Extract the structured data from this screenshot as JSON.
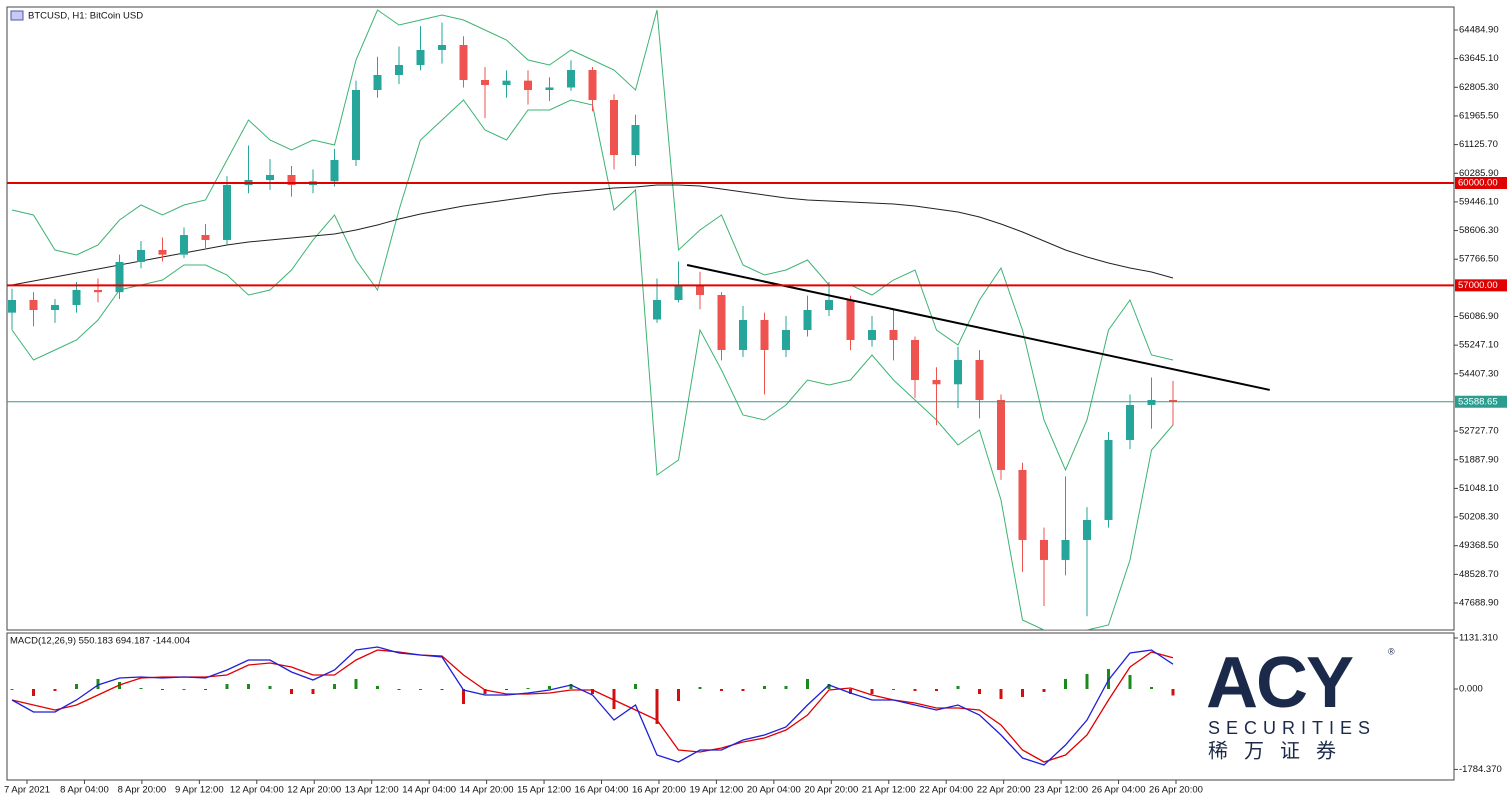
{
  "chart_data": [
    {
      "type": "candlestick",
      "title": "BTCUSD, H1:  BitCoin USD",
      "open": [
        56200,
        56571,
        56278,
        56425,
        56864,
        56800,
        57685,
        58037,
        57900,
        58476,
        58330,
        59942,
        60088,
        60235,
        59942,
        60050,
        60675,
        62726,
        63166,
        63459,
        63899,
        64045,
        63019,
        62873,
        63000,
        62726,
        62800,
        63313,
        62433,
        60821,
        56000,
        56571,
        57011,
        56718,
        55106,
        55985,
        55106,
        55692,
        56278,
        56571,
        55399,
        55692,
        55399,
        54226,
        54100,
        54813,
        53640,
        51589,
        49537,
        48951,
        49537,
        50123,
        52468,
        53494,
        53640
      ],
      "high": [
        56900,
        56800,
        56600,
        57100,
        57200,
        57900,
        58300,
        58400,
        58700,
        58800,
        60200,
        61100,
        60700,
        60500,
        60400,
        61000,
        63000,
        63700,
        64000,
        64600,
        64700,
        64300,
        63400,
        63300,
        63300,
        63100,
        63600,
        63400,
        62600,
        62000,
        57200,
        57700,
        57400,
        56800,
        56400,
        56200,
        56100,
        56700,
        57100,
        56700,
        56100,
        56300,
        55500,
        54600,
        55200,
        55100,
        53800,
        51800,
        49900,
        51400,
        50500,
        52700,
        53800,
        54300,
        54200
      ],
      "low": [
        55700,
        55800,
        55900,
        56200,
        56500,
        56600,
        57500,
        57700,
        57800,
        58100,
        58200,
        59700,
        59800,
        59600,
        59700,
        59900,
        60500,
        62500,
        62900,
        63300,
        63500,
        62800,
        61900,
        62500,
        62300,
        62400,
        62700,
        62100,
        60400,
        60500,
        55900,
        56500,
        56300,
        54800,
        54900,
        53800,
        54900,
        55500,
        56100,
        55100,
        55200,
        54800,
        53700,
        52900,
        53400,
        53100,
        51300,
        48600,
        47600,
        48500,
        47300,
        49900,
        52200,
        52800,
        52900
      ],
      "close": [
        56571,
        56278,
        56425,
        56864,
        56800,
        57685,
        58037,
        57900,
        58476,
        58330,
        59942,
        60088,
        60235,
        59942,
        60050,
        60675,
        62726,
        63166,
        63459,
        63899,
        64045,
        63019,
        62873,
        63000,
        62726,
        62800,
        63313,
        62433,
        60821,
        61700,
        56571,
        57011,
        56718,
        55106,
        55985,
        55106,
        55692,
        56278,
        56571,
        55399,
        55692,
        55399,
        54226,
        54100,
        54813,
        53640,
        51589,
        49537,
        48951,
        49537,
        50123,
        52468,
        53494,
        53640,
        53589
      ],
      "up_color": "#26a69a",
      "down_color": "#ef5350",
      "ylim": [
        46898,
        65159
      ],
      "yticks": [
        {
          "value": 64484.9,
          "label": "64484.90"
        },
        {
          "value": 63645.1,
          "label": "63645.10"
        },
        {
          "value": 62805.3,
          "label": "62805.30"
        },
        {
          "value": 61965.5,
          "label": "61965.50"
        },
        {
          "value": 61125.7,
          "label": "61125.70"
        },
        {
          "value": 60285.9,
          "label": "60285.90"
        },
        {
          "value": 59446.1,
          "label": "59446.10"
        },
        {
          "value": 58606.3,
          "label": "58606.30"
        },
        {
          "value": 57766.5,
          "label": "57766.50"
        },
        {
          "value": 56086.9,
          "label": "56086.90"
        },
        {
          "value": 55247.1,
          "label": "55247.10"
        },
        {
          "value": 54407.3,
          "label": "54407.30"
        },
        {
          "value": 52727.7,
          "label": "52727.70"
        },
        {
          "value": 51887.9,
          "label": "51887.90"
        },
        {
          "value": 51048.1,
          "label": "51048.10"
        },
        {
          "value": 50208.3,
          "label": "50208.30"
        },
        {
          "value": 49368.5,
          "label": "49368.50"
        },
        {
          "value": 48528.7,
          "label": "48528.70"
        },
        {
          "value": 47688.9,
          "label": "47688.90"
        }
      ],
      "x_labels": [
        "7 Apr 2021",
        "8 Apr 04:00",
        "8 Apr 20:00",
        "9 Apr 12:00",
        "12 Apr 04:00",
        "12 Apr 20:00",
        "13 Apr 12:00",
        "14 Apr 04:00",
        "14 Apr 20:00",
        "15 Apr 12:00",
        "16 Apr 04:00",
        "16 Apr 20:00",
        "19 Apr 12:00",
        "20 Apr 04:00",
        "20 Apr 20:00",
        "21 Apr 12:00",
        "22 Apr 04:00",
        "22 Apr 20:00",
        "23 Apr 12:00",
        "26 Apr 04:00",
        "26 Apr 20:00"
      ],
      "levels": [
        {
          "value": 60000,
          "label": "60000.00",
          "color": "#e00000"
        },
        {
          "value": 57000,
          "label": "57000.00",
          "color": "#e00000"
        },
        {
          "value": 53588.65,
          "label": "53588.65",
          "color": "#2a9d8f"
        }
      ],
      "moving_average": {
        "color": "#222222",
        "values": [
          57011,
          57128,
          57245,
          57363,
          57480,
          57597,
          57714,
          57832,
          57949,
          58066,
          58183,
          58271,
          58330,
          58388,
          58447,
          58506,
          58623,
          58770,
          58945,
          59092,
          59209,
          59327,
          59414,
          59502,
          59590,
          59678,
          59737,
          59795,
          59854,
          59883,
          59942,
          59942,
          59913,
          59825,
          59737,
          59649,
          59561,
          59502,
          59473,
          59444,
          59414,
          59385,
          59327,
          59239,
          59151,
          59004,
          58799,
          58565,
          58301,
          58037,
          57832,
          57656,
          57509,
          57392,
          57216
        ]
      },
      "bollinger": {
        "color": "#3cb371",
        "upper": [
          59209,
          59063,
          58037,
          57890,
          58183,
          58916,
          59356,
          59063,
          59356,
          59502,
          60675,
          61847,
          61261,
          60968,
          61261,
          61114,
          63606,
          65071,
          64632,
          64778,
          64925,
          64778,
          64485,
          64192,
          63606,
          63459,
          63899,
          63606,
          63313,
          62726,
          65071,
          58037,
          58623,
          59063,
          57597,
          57304,
          57451,
          57744,
          57011,
          57011,
          56718,
          57157,
          57451,
          55692,
          55252,
          56571,
          57509,
          55692,
          53054,
          51589,
          53054,
          55692,
          56571,
          54959,
          54813
        ],
        "lower": [
          55692,
          54813,
          55106,
          55399,
          55985,
          56864,
          57011,
          57157,
          57597,
          57597,
          57304,
          56718,
          56864,
          57451,
          58330,
          59063,
          57744,
          56864,
          59209,
          61261,
          61847,
          62433,
          61554,
          61261,
          62140,
          62140,
          62433,
          62287,
          59209,
          59795,
          51442,
          51882,
          55692,
          54520,
          53201,
          53054,
          53494,
          54226,
          54080,
          54226,
          54959,
          54226,
          53640,
          53054,
          52321,
          52761,
          50709,
          47192,
          46899,
          46899,
          46899,
          47046,
          48951,
          52175,
          52908
        ]
      },
      "trendline": {
        "color": "#000000",
        "x": [
          31.4,
          58.5
        ],
        "values": [
          57597,
          53934
        ]
      }
    },
    {
      "type": "macd",
      "title": "MACD(12,26,9) 550.183 694.187 -144.004",
      "ylim": [
        -2019,
        1220
      ],
      "yticks": [
        {
          "value": 1131.31,
          "label": "1131.310"
        },
        {
          "value": 0,
          "label": "0.000"
        },
        {
          "value": -1784.37,
          "label": "-1784.370"
        }
      ],
      "macd": {
        "color": "#1f1fd6",
        "values": [
          -244,
          -510,
          -510,
          -244,
          89,
          244,
          266,
          244,
          266,
          244,
          421,
          643,
          643,
          377,
          200,
          421,
          865,
          932,
          799,
          754,
          710,
          -22,
          -133,
          -133,
          -89,
          -22,
          89,
          -133,
          -688,
          -355,
          -1464,
          -1619,
          -1353,
          -1353,
          -1131,
          -1020,
          -843,
          -355,
          89,
          -89,
          -244,
          -244,
          -355,
          -466,
          -355,
          -577,
          -1020,
          -1530,
          -1686,
          -1242,
          -688,
          200,
          799,
          865,
          550
        ]
      },
      "signal": {
        "color": "#e00000",
        "values": [
          -244,
          -355,
          -466,
          -355,
          -133,
          89,
          244,
          266,
          266,
          266,
          311,
          532,
          577,
          488,
          311,
          311,
          643,
          865,
          821,
          754,
          732,
          311,
          -22,
          -111,
          -111,
          -89,
          -22,
          -22,
          -244,
          -466,
          -688,
          -1353,
          -1397,
          -1309,
          -1176,
          -1087,
          -909,
          -577,
          -22,
          22,
          -133,
          -244,
          -311,
          -421,
          -421,
          -466,
          -798,
          -1353,
          -1619,
          -1464,
          -1020,
          -244,
          488,
          821,
          694
        ]
      },
      "histogram": {
        "up_color": "#1a8a1a",
        "down_color": "#d01010",
        "values": [
          0,
          -155,
          -44,
          111,
          222,
          155,
          22,
          -22,
          0,
          -22,
          110,
          111,
          66,
          -111,
          -111,
          110,
          222,
          67,
          -22,
          0,
          -22,
          -333,
          -111,
          -22,
          22,
          67,
          111,
          -111,
          -444,
          111,
          -776,
          -266,
          44,
          -44,
          -45,
          67,
          66,
          222,
          111,
          -111,
          -111,
          0,
          -44,
          -45,
          66,
          -111,
          -222,
          -177,
          -67,
          222,
          332,
          444,
          311,
          44,
          -144
        ]
      }
    }
  ],
  "logo": {
    "brand": "ACY",
    "registered": "®",
    "tagline": "SECURITIES",
    "local": "稀万证券"
  }
}
